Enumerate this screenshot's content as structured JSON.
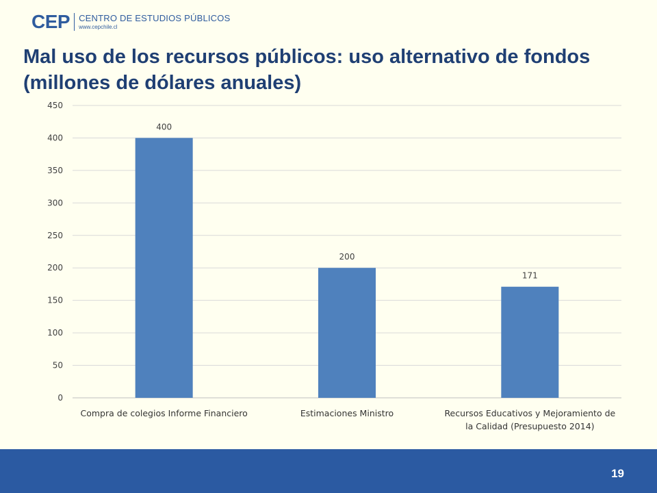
{
  "header": {
    "logo_mark": "CEP",
    "logo_name": "CENTRO DE ESTUDIOS PÚBLICOS",
    "logo_url": "www.cepchile.cl",
    "title_line1": "Mal uso de los recursos públicos: uso alternativo de fondos",
    "title_line2": "(millones de dólares anuales)"
  },
  "footer": {
    "page_number": "19"
  },
  "colors": {
    "bar": "#4F81BD",
    "footer": "#2B5AA2",
    "title": "#1F3F73",
    "background": "#FFFFF0"
  },
  "chart_data": {
    "type": "bar",
    "title": "",
    "xlabel": "",
    "ylabel": "",
    "ylim": [
      0,
      450
    ],
    "yticks": [
      0,
      50,
      100,
      150,
      200,
      250,
      300,
      350,
      400,
      450
    ],
    "grid": true,
    "legend": "none",
    "categories": [
      [
        "Compra de colegios Informe Financiero"
      ],
      [
        "Estimaciones Ministro"
      ],
      [
        "Recursos Educativos y Mejoramiento de",
        "la Calidad (Presupuesto 2014)"
      ]
    ],
    "values": [
      400,
      200,
      171
    ],
    "data_labels": [
      "400",
      "200",
      "171"
    ]
  }
}
